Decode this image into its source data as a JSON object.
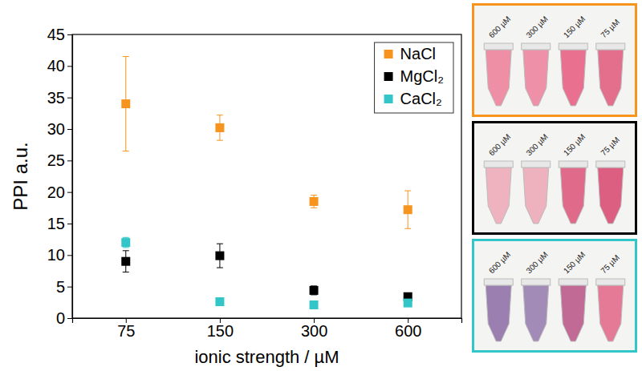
{
  "chart_data": {
    "type": "scatter",
    "x_label": "ionic strength / µM",
    "y_label": "PPI a.u.",
    "categories": [
      "75",
      "150",
      "300",
      "600"
    ],
    "ylim": [
      0,
      45
    ],
    "yticks": [
      0,
      5,
      10,
      15,
      20,
      25,
      30,
      35,
      40,
      45
    ],
    "grid": false,
    "legend": "upper right",
    "marker": "square",
    "series": [
      {
        "name": "NaCl",
        "color": "#f7941d",
        "values": [
          34.0,
          30.2,
          18.5,
          17.2
        ],
        "errors": [
          7.5,
          2.0,
          1.0,
          3.0
        ]
      },
      {
        "name": "MgCl₂",
        "color": "#000000",
        "values": [
          9.0,
          9.9,
          4.4,
          3.4
        ],
        "errors": [
          1.7,
          1.9,
          0.7,
          0.3
        ]
      },
      {
        "name": "CaCl₂",
        "color": "#33c6c8",
        "values": [
          12.0,
          2.6,
          2.1,
          2.4
        ],
        "errors": [
          0.8,
          0.3,
          0.3,
          0.3
        ]
      }
    ]
  },
  "photos": [
    {
      "labels": [
        "600 µM",
        "300 µM",
        "150 µM",
        "75 µM"
      ]
    },
    {
      "labels": [
        "600 µM",
        "300 µM",
        "150 µM",
        "75 µM"
      ]
    },
    {
      "labels": [
        "600 µM",
        "300 µM",
        "150 µM",
        "75 µM"
      ]
    }
  ]
}
